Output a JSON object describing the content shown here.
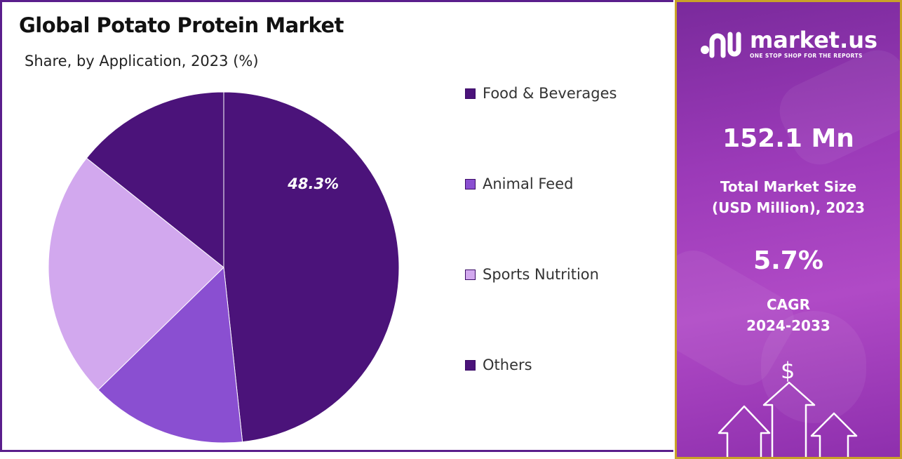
{
  "chart_data": {
    "type": "pie",
    "title": "Global Potato Protein Market",
    "subtitle": "Share, by Application, 2023 (%)",
    "categories": [
      "Food & Beverages",
      "Animal Feed",
      "Sports Nutrition",
      "Others"
    ],
    "values": [
      48.3,
      14.4,
      23.0,
      14.3
    ],
    "data_labels": [
      "48.3%",
      "",
      "",
      ""
    ],
    "colors": [
      "#4b137a",
      "#8a4fd1",
      "#d2a8ee",
      "#4b137a"
    ],
    "legend_position": "right",
    "start_angle": "12 o'clock, clockwise"
  },
  "sidebar": {
    "brand": {
      "name": "market.us",
      "tagline": "ONE STOP SHOP FOR THE REPORTS"
    },
    "market_size": {
      "value": "152.1 Mn",
      "label_line1": "Total Market Size",
      "label_line2": "(USD Million), 2023"
    },
    "cagr": {
      "value": "5.7%",
      "label_line1": "CAGR",
      "label_line2": "2024-2033"
    },
    "icons": [
      "dollar-icon",
      "up-arrow-icon",
      "up-arrow-icon",
      "up-arrow-icon"
    ]
  }
}
